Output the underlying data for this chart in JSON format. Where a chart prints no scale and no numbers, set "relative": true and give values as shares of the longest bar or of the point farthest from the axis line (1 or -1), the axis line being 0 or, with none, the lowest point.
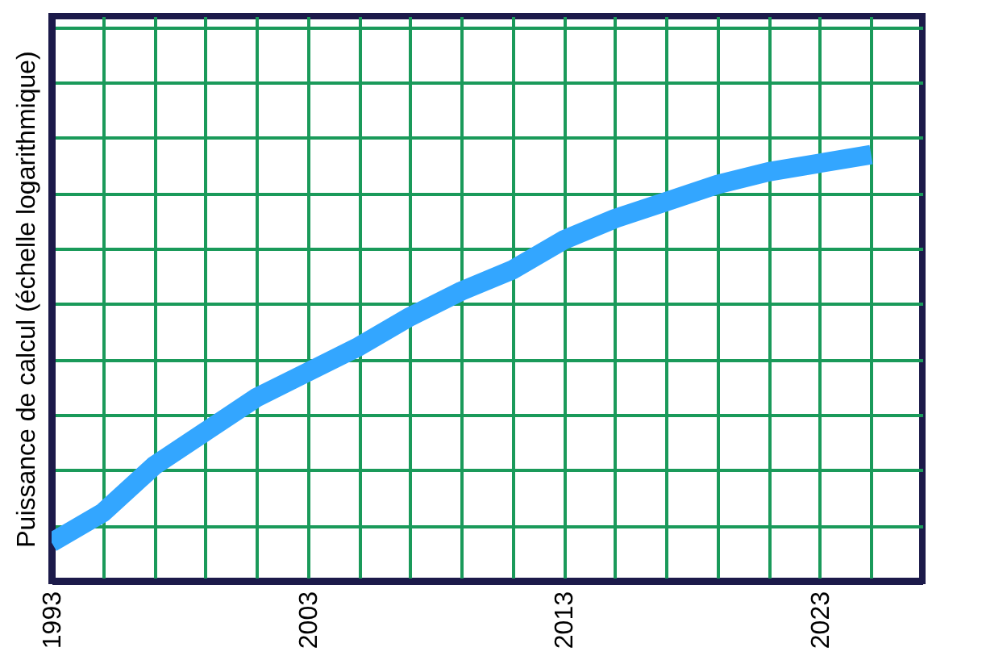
{
  "chart_data": {
    "type": "line",
    "ylabel": "Puissance de calcul (échelle logarithmique)",
    "relative": true,
    "x": [
      1993,
      1995,
      1997,
      1999,
      2001,
      2003,
      2005,
      2007,
      2009,
      2011,
      2013,
      2015,
      2017,
      2019,
      2021,
      2023,
      2025
    ],
    "series": [
      {
        "color": "#33a6ff",
        "values": [
          0.09,
          0.16,
          0.27,
          0.35,
          0.43,
          0.49,
          0.55,
          0.62,
          0.68,
          0.73,
          0.8,
          0.85,
          0.89,
          0.93,
          0.96,
          0.98,
          1
        ]
      }
    ],
    "xlim": [
      1993,
      2027
    ],
    "xticks": [
      1993,
      {
        "value": 1995,
        "label": null
      },
      {
        "value": 1997,
        "label": null
      },
      {
        "value": 1999,
        "label": null
      },
      {
        "value": 2001,
        "label": null
      },
      2003,
      {
        "value": 2005,
        "label": null
      },
      {
        "value": 2007,
        "label": null
      },
      {
        "value": 2009,
        "label": null
      },
      {
        "value": 2011,
        "label": null
      },
      2013,
      {
        "value": 2015,
        "label": null
      },
      {
        "value": 2017,
        "label": null
      },
      {
        "value": 2019,
        "label": null
      },
      {
        "value": 2021,
        "label": null
      },
      2023,
      {
        "value": 2025,
        "label": null
      }
    ],
    "grid": true,
    "tick_labels": "x",
    "line_style": "solid",
    "marker": "none"
  }
}
